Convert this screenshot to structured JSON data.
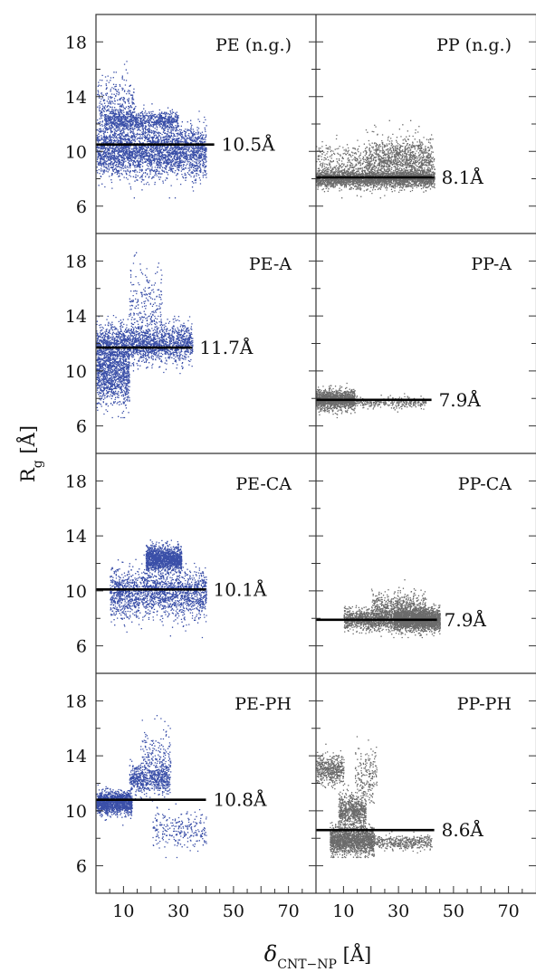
{
  "chart_data": {
    "type": "scatter",
    "layout": "4 rows x 2 columns, shared axes",
    "xlabel": "δ",
    "xlabel_sub": "CNT−NP",
    "xlabel_unit": " [Å]",
    "ylabel": "R",
    "ylabel_sub": "g",
    "ylabel_unit": " [Å]",
    "xlim": [
      0,
      80
    ],
    "ylim": [
      4,
      20
    ],
    "left_xticks": [
      10,
      30,
      50,
      70
    ],
    "right_xticks": [
      10,
      30,
      50,
      70
    ],
    "xticks_minor_left": [
      5,
      10,
      15,
      20,
      25,
      30,
      35,
      40,
      45,
      50,
      55,
      60,
      65,
      70,
      75
    ],
    "yticks_labeled": [
      6,
      10,
      14,
      18
    ],
    "yticks_minor": [
      6,
      8,
      10,
      12,
      14,
      16,
      18
    ],
    "colors": {
      "PE": "#3a4fa8",
      "PP": "#6b6b6b",
      "line": "#000000"
    },
    "panels": [
      {
        "label": "PE (n.g.)",
        "polymer": "PE",
        "mean_value": 10.5,
        "mean_label": "10.5Å",
        "line_x": [
          0,
          43
        ],
        "clusters": [
          {
            "n": 3000,
            "x": [
              0,
              40
            ],
            "y_mean": 10.0,
            "y_sd": 0.9
          },
          {
            "n": 900,
            "x": [
              3,
              30
            ],
            "y_mean": 12.2,
            "y_sd": 0.35
          },
          {
            "n": 400,
            "x": [
              0,
              14
            ],
            "y_mean": 13.0,
            "y_sd": 1.2
          }
        ]
      },
      {
        "label": "PP (n.g.)",
        "polymer": "PP",
        "mean_value": 8.1,
        "mean_label": "8.1Å",
        "line_x": [
          0,
          43
        ],
        "clusters": [
          {
            "n": 2800,
            "x": [
              0,
              43
            ],
            "y_mean": 8.0,
            "y_sd": 0.3
          },
          {
            "n": 900,
            "x": [
              0,
              43
            ],
            "y_mean": 9.0,
            "y_sd": 0.8
          },
          {
            "n": 700,
            "x": [
              18,
              42
            ],
            "y_mean": 9.6,
            "y_sd": 0.7
          }
        ]
      },
      {
        "label": "PE-A",
        "polymer": "PE",
        "mean_value": 11.7,
        "mean_label": "11.7Å",
        "line_x": [
          0,
          35
        ],
        "clusters": [
          {
            "n": 1900,
            "x": [
              0,
              35
            ],
            "y_mean": 12.0,
            "y_sd": 0.7
          },
          {
            "n": 1200,
            "x": [
              0,
              12
            ],
            "y_mean": 9.8,
            "y_sd": 1.1
          },
          {
            "n": 250,
            "x": [
              12,
              24
            ],
            "y_mean": 14.5,
            "y_sd": 1.7
          }
        ]
      },
      {
        "label": "PP-A",
        "polymer": "PP",
        "mean_value": 7.9,
        "mean_label": "7.9Å",
        "line_x": [
          0,
          42
        ],
        "clusters": [
          {
            "n": 1400,
            "x": [
              0,
              14
            ],
            "y_mean": 7.9,
            "y_sd": 0.35
          },
          {
            "n": 350,
            "x": [
              12,
              40
            ],
            "y_mean": 7.7,
            "y_sd": 0.2
          }
        ]
      },
      {
        "label": "PE-CA",
        "polymer": "PE",
        "mean_value": 10.1,
        "mean_label": "10.1Å",
        "line_x": [
          0,
          40
        ],
        "clusters": [
          {
            "n": 1400,
            "x": [
              18,
              31
            ],
            "y_mean": 12.3,
            "y_sd": 0.45
          },
          {
            "n": 1900,
            "x": [
              5,
              40
            ],
            "y_mean": 9.8,
            "y_sd": 0.9
          }
        ]
      },
      {
        "label": "PP-CA",
        "polymer": "PP",
        "mean_value": 7.9,
        "mean_label": "7.9Å",
        "line_x": [
          0,
          44
        ],
        "clusters": [
          {
            "n": 2400,
            "x": [
              28,
              45
            ],
            "y_mean": 7.9,
            "y_sd": 0.4
          },
          {
            "n": 1100,
            "x": [
              10,
              30
            ],
            "y_mean": 7.9,
            "y_sd": 0.4
          },
          {
            "n": 500,
            "x": [
              20,
              40
            ],
            "y_mean": 8.9,
            "y_sd": 0.5
          }
        ]
      },
      {
        "label": "PE-PH",
        "polymer": "PE",
        "mean_value": 10.8,
        "mean_label": "10.8Å",
        "line_x": [
          0,
          40
        ],
        "clusters": [
          {
            "n": 1400,
            "x": [
              0,
              13
            ],
            "y_mean": 10.6,
            "y_sd": 0.4
          },
          {
            "n": 600,
            "x": [
              12,
              27
            ],
            "y_mean": 12.3,
            "y_sd": 0.5
          },
          {
            "n": 250,
            "x": [
              16,
              27
            ],
            "y_mean": 13.5,
            "y_sd": 1.2
          },
          {
            "n": 250,
            "x": [
              20,
              40
            ],
            "y_mean": 8.6,
            "y_sd": 0.7
          }
        ]
      },
      {
        "label": "PP-PH",
        "polymer": "PP",
        "mean_value": 8.6,
        "mean_label": "8.6Å",
        "line_x": [
          0,
          43
        ],
        "clusters": [
          {
            "n": 1600,
            "x": [
              5,
              21
            ],
            "y_mean": 7.8,
            "y_sd": 0.5
          },
          {
            "n": 700,
            "x": [
              8,
              18
            ],
            "y_mean": 10.0,
            "y_sd": 0.6
          },
          {
            "n": 500,
            "x": [
              0,
              10
            ],
            "y_mean": 13.0,
            "y_sd": 0.5
          },
          {
            "n": 400,
            "x": [
              21,
              42
            ],
            "y_mean": 7.7,
            "y_sd": 0.25
          },
          {
            "n": 200,
            "x": [
              14,
              22
            ],
            "y_mean": 12.5,
            "y_sd": 1.0
          }
        ]
      }
    ]
  }
}
